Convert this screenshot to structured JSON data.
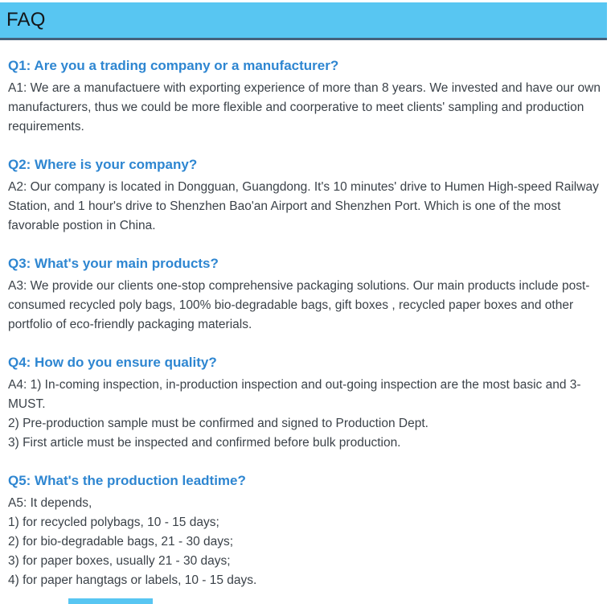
{
  "header": {
    "title": "FAQ",
    "background_color": "#58c6f2",
    "border_color": "#44617c"
  },
  "colors": {
    "question_text": "#2e86d1",
    "answer_text": "#3b4249"
  },
  "faq": {
    "items": [
      {
        "question": "Q1: Are you a trading company or a manufacturer?",
        "lines": [
          "A1: We are a manufactuere with exporting experience of more than 8 years. We invested and have our own manufacturers, thus we could be more flexible and coorperative to meet clients' sampling and production requirements."
        ]
      },
      {
        "question": "Q2: Where is your company?",
        "lines": [
          "A2: Our company is located in Dongguan, Guangdong. It's 10 minutes' drive to Humen High-speed Railway Station, and 1 hour's drive to Shenzhen Bao'an Airport and Shenzhen Port. Which is one of the most favorable postion in China."
        ]
      },
      {
        "question": "Q3: What's your main products?",
        "lines": [
          "A3: We provide our clients one-stop comprehensive packaging solutions. Our main products include post-consumed recycled poly bags, 100% bio-degradable bags, gift boxes , recycled paper boxes and other portfolio of eco-friendly packaging materials."
        ]
      },
      {
        "question": "Q4: How do you ensure quality?",
        "lines": [
          "A4: 1) In-coming inspection, in-production inspection and out-going inspection are the most basic and 3-MUST.",
          "2) Pre-production sample must be confirmed and signed to Production Dept.",
          "3) First article must be inspected and confirmed before bulk production."
        ]
      },
      {
        "question": "Q5: What's the production leadtime?",
        "lines": [
          "A5: It depends,",
          "1) for recycled polybags, 10 - 15 days;",
          "2) for bio-degradable bags, 21 - 30 days;",
          "3) for paper boxes, usually 21 - 30 days;",
          "4) for paper hangtags or labels, 10 - 15 days."
        ]
      }
    ]
  }
}
